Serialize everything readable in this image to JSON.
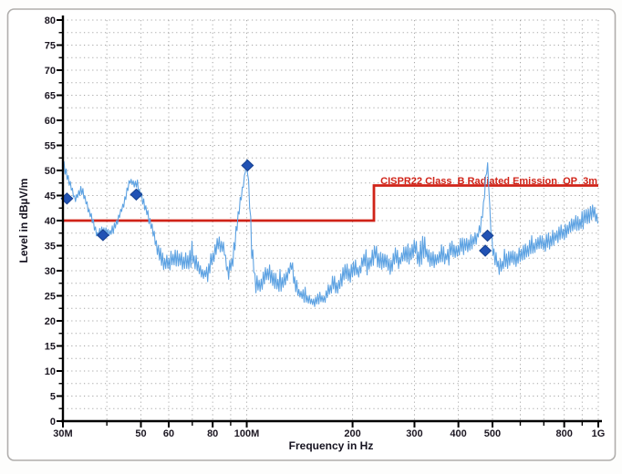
{
  "chart_data": {
    "type": "line",
    "title": "",
    "xlabel": "Frequency in Hz",
    "ylabel": "Level in dBµV/m",
    "x_scale": "log",
    "x_range_mhz": [
      30,
      1000
    ],
    "ylim": [
      0,
      80
    ],
    "y_major_step": 5,
    "y_minor_step": 2.5,
    "grid": {
      "on": true,
      "style": "dotted",
      "h_step_db": 2.5,
      "color": "#8f8f8f"
    },
    "x_ticks_mhz": [
      30,
      40,
      50,
      60,
      70,
      80,
      90,
      100,
      200,
      300,
      400,
      500,
      600,
      700,
      800,
      900,
      1000
    ],
    "x_tick_labels": [
      [
        30,
        "30M"
      ],
      [
        50,
        "50"
      ],
      [
        60,
        "60"
      ],
      [
        80,
        "80"
      ],
      [
        100,
        "100M"
      ],
      [
        200,
        "200"
      ],
      [
        300,
        "300"
      ],
      [
        400,
        "400"
      ],
      [
        500,
        "500"
      ],
      [
        800,
        "800"
      ],
      [
        1000,
        "1G"
      ]
    ],
    "limit_line": {
      "label": "CISPR22 Class_B Radiated Emission_QP_3m",
      "color": "#d02318",
      "segments_mhz_db": [
        [
          30,
          40
        ],
        [
          230,
          40
        ],
        [
          230,
          47
        ],
        [
          1000,
          47
        ]
      ]
    },
    "trace": {
      "name": "radiated-emission-peak-trace",
      "color": "#5da2e2",
      "noise_seed": 7,
      "anchors_mhz_db_amp": [
        [
          30,
          51,
          1.3
        ],
        [
          30.6,
          49.5,
          1.3
        ],
        [
          31.4,
          47.5,
          1.2
        ],
        [
          32.5,
          44,
          1.0
        ],
        [
          34,
          46.5,
          1.0
        ],
        [
          35.5,
          42,
          1.0
        ],
        [
          37.5,
          37.2,
          0.9
        ],
        [
          39,
          38,
          0.9
        ],
        [
          41,
          37.5,
          0.9
        ],
        [
          43,
          40,
          1.0
        ],
        [
          45,
          44,
          1.0
        ],
        [
          46.5,
          47.8,
          0.9
        ],
        [
          48.5,
          47,
          0.9
        ],
        [
          50,
          45,
          1.0
        ],
        [
          52,
          41.5,
          1.2
        ],
        [
          54,
          38,
          1.5
        ],
        [
          56,
          33.5,
          1.8
        ],
        [
          58.5,
          31,
          2.2
        ],
        [
          61,
          32,
          2.2
        ],
        [
          64,
          32.5,
          2.2
        ],
        [
          67,
          31.5,
          2.2
        ],
        [
          70,
          32.5,
          2.2
        ],
        [
          73,
          31,
          1.8
        ],
        [
          75.5,
          28.8,
          1.5
        ],
        [
          78,
          30.5,
          2.0
        ],
        [
          81,
          33.5,
          2.2
        ],
        [
          83.5,
          36,
          1.5
        ],
        [
          86,
          34.5,
          1.5
        ],
        [
          88.5,
          29.5,
          1.8
        ],
        [
          91,
          31.5,
          2.0
        ],
        [
          93.5,
          38,
          2.0
        ],
        [
          96,
          44,
          1.5
        ],
        [
          98.5,
          48.5,
          1.0
        ],
        [
          100,
          52,
          0.7
        ],
        [
          101.5,
          46,
          1.5
        ],
        [
          103.5,
          34,
          2.0
        ],
        [
          106,
          27,
          1.8
        ],
        [
          110,
          27.5,
          2.4
        ],
        [
          115,
          29.5,
          2.4
        ],
        [
          120,
          27.8,
          2.0
        ],
        [
          126,
          27,
          1.8
        ],
        [
          131,
          29,
          2.4
        ],
        [
          134,
          31.5,
          2.0
        ],
        [
          137,
          27.5,
          2.0
        ],
        [
          141,
          25.5,
          1.6
        ],
        [
          146,
          24.5,
          1.5
        ],
        [
          151,
          23.8,
          1.2
        ],
        [
          156,
          23.4,
          1.0
        ],
        [
          161,
          24.6,
          1.5
        ],
        [
          166,
          24,
          1.2
        ],
        [
          171,
          25.5,
          1.6
        ],
        [
          176,
          27.5,
          2.0
        ],
        [
          181,
          26.5,
          1.6
        ],
        [
          186,
          28,
          2.0
        ],
        [
          191,
          30.5,
          2.6
        ],
        [
          196,
          29,
          2.0
        ],
        [
          202,
          30.5,
          2.2
        ],
        [
          209,
          29.5,
          2.0
        ],
        [
          216,
          32.5,
          2.6
        ],
        [
          224,
          31,
          2.2
        ],
        [
          232,
          33.5,
          2.8
        ],
        [
          240,
          31.5,
          2.2
        ],
        [
          248,
          32.5,
          2.2
        ],
        [
          256,
          30.5,
          2.0
        ],
        [
          264,
          33,
          2.4
        ],
        [
          272,
          31.5,
          2.0
        ],
        [
          282,
          34,
          2.6
        ],
        [
          292,
          32.5,
          2.2
        ],
        [
          300,
          35,
          2.6
        ],
        [
          310,
          32,
          2.2
        ],
        [
          320,
          34,
          2.4
        ],
        [
          332,
          32.5,
          2.2
        ],
        [
          344,
          31.5,
          2.0
        ],
        [
          356,
          33.5,
          2.2
        ],
        [
          368,
          32.5,
          2.0
        ],
        [
          382,
          34.5,
          2.2
        ],
        [
          396,
          33.5,
          2.0
        ],
        [
          410,
          35,
          2.2
        ],
        [
          424,
          34.5,
          2.0
        ],
        [
          438,
          35.5,
          2.0
        ],
        [
          452,
          36.5,
          1.8
        ],
        [
          462,
          38.5,
          1.5
        ],
        [
          472,
          43,
          1.5
        ],
        [
          479,
          48.5,
          1.5
        ],
        [
          484,
          51.5,
          0.8
        ],
        [
          488,
          47,
          1.5
        ],
        [
          493,
          40,
          2.0
        ],
        [
          500,
          34.5,
          2.0
        ],
        [
          510,
          32,
          2.0
        ],
        [
          522,
          30.8,
          1.9
        ],
        [
          536,
          31.2,
          2.0
        ],
        [
          552,
          31.8,
          2.0
        ],
        [
          568,
          32.3,
          2.0
        ],
        [
          584,
          31.8,
          1.9
        ],
        [
          600,
          33,
          2.0
        ],
        [
          620,
          33.6,
          2.0
        ],
        [
          640,
          34.2,
          2.0
        ],
        [
          662,
          34.8,
          2.0
        ],
        [
          685,
          35.4,
          2.0
        ],
        [
          710,
          35.2,
          2.0
        ],
        [
          735,
          36.2,
          2.0
        ],
        [
          760,
          36.8,
          2.0
        ],
        [
          790,
          37.4,
          2.0
        ],
        [
          820,
          38.2,
          2.0
        ],
        [
          850,
          38.8,
          2.0
        ],
        [
          880,
          39.4,
          2.0
        ],
        [
          910,
          40,
          2.1
        ],
        [
          945,
          41,
          2.2
        ],
        [
          970,
          41.3,
          1.8
        ],
        [
          1000,
          39.8,
          1.4
        ]
      ]
    },
    "markers": {
      "name": "qp-measurement-markers",
      "shape": "diamond",
      "color": "#2152b4",
      "points_mhz_db": [
        [
          30.8,
          44.4
        ],
        [
          39,
          37.1
        ],
        [
          48.5,
          45.2
        ],
        [
          100.5,
          51
        ],
        [
          477,
          34
        ],
        [
          484,
          37
        ]
      ]
    },
    "legend": {
      "position": "none"
    }
  },
  "frame": {
    "border_color": "#b0aeac",
    "background": "#ffffff"
  }
}
